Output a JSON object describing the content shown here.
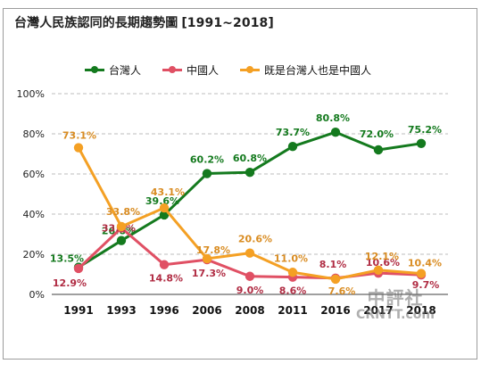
{
  "title": "台灣人民族認同的長期趨勢圖",
  "subtitle": "[1991~2018]",
  "watermark": {
    "chinese": "中評社",
    "site": "CRNTT.com"
  },
  "colors": {
    "green": "#147a1e",
    "red": "#e05064",
    "orange": "#f4a024",
    "axis": "#666666",
    "grid": "#bdbdbd"
  },
  "chart_data": {
    "type": "line",
    "title": "台灣人民族認同的長期趨勢圖",
    "subtitle": "[1991~2018]",
    "xlabel": "",
    "ylabel": "",
    "x": [
      "1991",
      "1993",
      "1996",
      "2006",
      "2008",
      "2011",
      "2016",
      "2017",
      "2018"
    ],
    "ylim": [
      0,
      100
    ],
    "y_ticks": [
      "0%",
      "20%",
      "40%",
      "60%",
      "80%",
      "100%"
    ],
    "grid": "horizontal-dashed",
    "legend_position": "top",
    "series": [
      {
        "name": "台灣人",
        "color": "#147a1e",
        "values": [
          13.5,
          26.8,
          39.6,
          60.2,
          60.8,
          73.7,
          80.8,
          72.0,
          75.2
        ],
        "labels": [
          "13.5%",
          "26.8%",
          "39.6%",
          "60.2%",
          "60.8%",
          "73.7%",
          "80.8%",
          "72.0%",
          "75.2%"
        ]
      },
      {
        "name": "中國人",
        "color": "#e05064",
        "values": [
          12.9,
          33.1,
          14.8,
          17.3,
          9.0,
          8.6,
          8.1,
          10.6,
          9.7
        ],
        "labels": [
          "12.9%",
          "33.1%",
          "14.8%",
          "17.3%",
          "9.0%",
          "8.6%",
          "8.1%",
          "10.6%",
          "9.7%"
        ]
      },
      {
        "name": "既是台灣人也是中國人",
        "color": "#f4a024",
        "values": [
          73.1,
          33.8,
          43.1,
          17.8,
          20.6,
          11.0,
          7.6,
          12.1,
          10.4
        ],
        "labels": [
          "73.1%",
          "33.8%",
          "43.1%",
          "17.8%",
          "20.6%",
          "11.0%",
          "7.6%",
          "12.1%",
          "10.4%"
        ]
      }
    ]
  }
}
